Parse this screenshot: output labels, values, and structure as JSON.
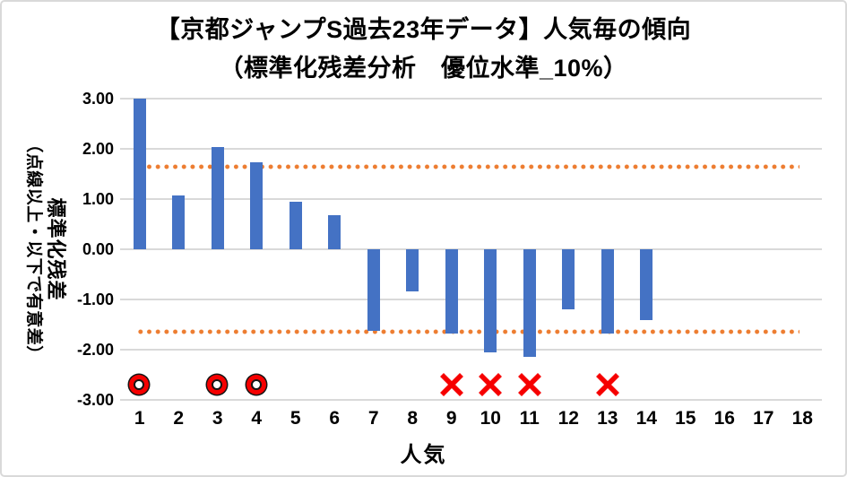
{
  "title": {
    "line1": "【京都ジャンプS過去23年データ】人気毎の傾向",
    "line2": "（標準化残差分析　優位水準_10%）"
  },
  "y_axis": {
    "title_main": "標準化残差",
    "title_sub": "（点線以上・以下で有意差）",
    "tick_labels": [
      "3.00",
      "2.00",
      "1.00",
      "0.00",
      "-1.00",
      "-2.00",
      "-3.00"
    ],
    "tick_values": [
      3,
      2,
      1,
      0,
      -1,
      -2,
      -3
    ]
  },
  "x_axis": {
    "title": "人気",
    "tick_labels": [
      "1",
      "2",
      "3",
      "4",
      "5",
      "6",
      "7",
      "8",
      "9",
      "10",
      "11",
      "12",
      "13",
      "14",
      "15",
      "16",
      "17",
      "18"
    ]
  },
  "chart_data": {
    "type": "bar",
    "title": "【京都ジャンプS過去23年データ】人気毎の傾向",
    "subtitle": "（標準化残差分析　優位水準_10%）",
    "xlabel": "人気",
    "ylabel": "標準化残差（点線以上・以下で有意差）",
    "categories": [
      1,
      2,
      3,
      4,
      5,
      6,
      7,
      8,
      9,
      10,
      11,
      12,
      13,
      14,
      15,
      16,
      17,
      18
    ],
    "values": [
      3.0,
      1.07,
      2.04,
      1.73,
      0.95,
      0.68,
      -1.63,
      -0.84,
      -1.68,
      -2.06,
      -2.14,
      -1.2,
      -1.67,
      -1.41,
      0,
      0,
      0,
      0
    ],
    "ylim": [
      -3,
      3
    ],
    "ytick_step": 1,
    "grid": true,
    "legend": false,
    "threshold_lines": {
      "upper": 1.645,
      "lower": -1.645,
      "style": "dotted"
    },
    "markers": {
      "double_circle_categories": [
        1,
        3,
        4
      ],
      "x_categories": [
        9,
        10,
        11,
        13
      ],
      "marker_y": -2.7
    },
    "colors": {
      "bar": "#4472C4",
      "threshold_dots": "#ED7D31",
      "marker_red": "#F60000",
      "gridline": "#D9D9D9",
      "text": "#000000",
      "chart_border": "#D9D9D9"
    }
  }
}
